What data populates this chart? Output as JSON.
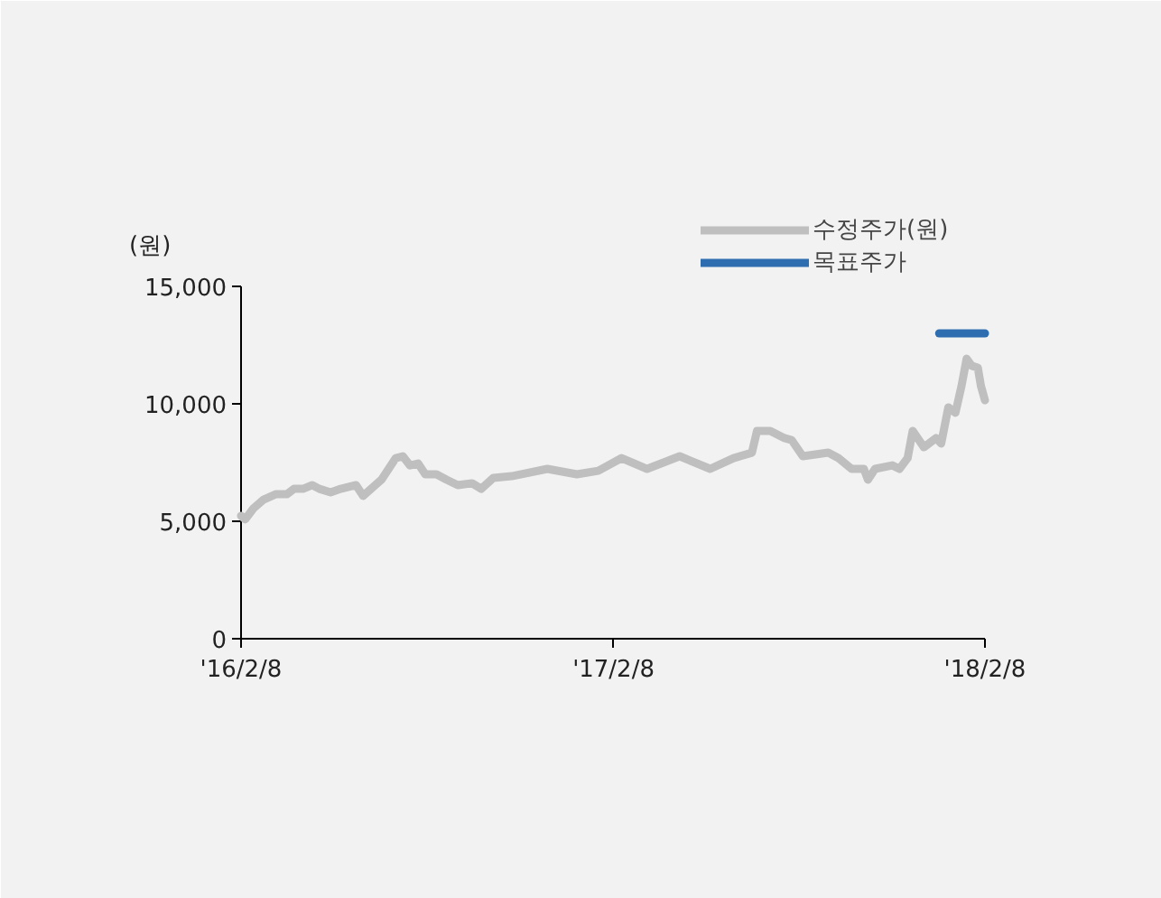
{
  "chart_data": {
    "type": "line",
    "ylabel": "(원)",
    "legend": "top right",
    "grid": false,
    "marker": "none",
    "line_style": "solid",
    "xlim": [
      "2016-02-08",
      "2018-02-08"
    ],
    "xticks": [
      {
        "value": "2016-02-08",
        "label": "'16/2/8"
      },
      {
        "value": "2017-02-08",
        "label": "'17/2/8"
      },
      {
        "value": "2018-02-08",
        "label": "'18/2/8"
      }
    ],
    "ylim": [
      0,
      15000
    ],
    "yticks": [
      {
        "value": 0,
        "label": "0"
      },
      {
        "value": 5000,
        "label": "5,000"
      },
      {
        "value": 10000,
        "label": "10,000"
      },
      {
        "value": 15000,
        "label": "15,000"
      }
    ],
    "series": [
      {
        "name": "수정주가(원)",
        "color": "#bfbfbf",
        "x": [
          "2016-02-08",
          "2016-02-12",
          "2016-02-20",
          "2016-03-01",
          "2016-03-13",
          "2016-03-24",
          "2016-03-31",
          "2016-04-09",
          "2016-04-18",
          "2016-04-25",
          "2016-05-06",
          "2016-05-16",
          "2016-05-31",
          "2016-06-07",
          "2016-06-25",
          "2016-07-09",
          "2016-07-16",
          "2016-07-23",
          "2016-07-31",
          "2016-08-07",
          "2016-08-18",
          "2016-08-28",
          "2016-09-08",
          "2016-09-22",
          "2016-10-01",
          "2016-10-13",
          "2016-10-31",
          "2016-12-05",
          "2017-01-03",
          "2017-01-24",
          "2017-02-16",
          "2017-03-13",
          "2017-04-14",
          "2017-05-14",
          "2017-06-06",
          "2017-06-24",
          "2017-06-29",
          "2017-07-12",
          "2017-07-26",
          "2017-08-02",
          "2017-08-13",
          "2017-09-07",
          "2017-09-17",
          "2017-09-30",
          "2017-10-12",
          "2017-10-16",
          "2017-10-23",
          "2017-11-09",
          "2017-11-16",
          "2017-11-24",
          "2017-11-29",
          "2017-12-10",
          "2017-12-22",
          "2017-12-27",
          "2018-01-03",
          "2018-01-10",
          "2018-01-16",
          "2018-01-21",
          "2018-01-26",
          "2018-02-01",
          "2018-02-04",
          "2018-02-08"
        ],
        "values": [
          5230,
          5080,
          5540,
          5920,
          6150,
          6150,
          6380,
          6380,
          6540,
          6380,
          6230,
          6380,
          6540,
          6080,
          6770,
          7690,
          7770,
          7380,
          7460,
          7000,
          7000,
          6770,
          6540,
          6620,
          6380,
          6850,
          6920,
          7230,
          7000,
          7150,
          7690,
          7230,
          7770,
          7230,
          7690,
          7920,
          8850,
          8850,
          8540,
          8460,
          7770,
          7920,
          7690,
          7230,
          7230,
          6770,
          7230,
          7380,
          7230,
          7690,
          8850,
          8150,
          8540,
          8310,
          9850,
          9620,
          10770,
          11920,
          11620,
          11540,
          10770,
          10150
        ]
      },
      {
        "name": "목표주가",
        "color": "#2e6eb0",
        "x": [
          "2017-12-25",
          "2018-02-08"
        ],
        "values": [
          13000,
          13000
        ]
      }
    ]
  }
}
